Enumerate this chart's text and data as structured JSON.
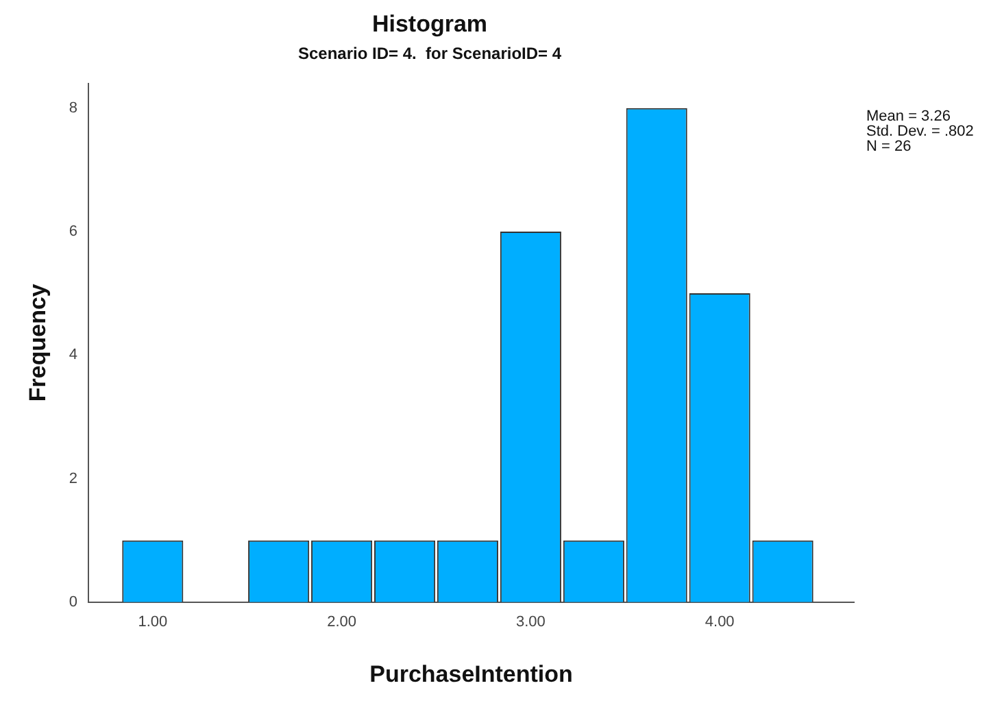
{
  "chart_data": {
    "type": "histogram",
    "title": "Histogram",
    "subtitle": "Scenario ID= 4.  for ScenarioID= 4",
    "xlabel": "PurchaseIntention",
    "ylabel": "Frequency",
    "bins": [
      0.833,
      1.167,
      1.5,
      1.833,
      2.167,
      2.5,
      2.833,
      3.167,
      3.5,
      3.833,
      4.167,
      4.5
    ],
    "values": [
      1,
      0,
      1,
      1,
      1,
      1,
      6,
      1,
      8,
      5,
      1
    ],
    "color": "#00aeff",
    "xlim": [
      0.66,
      4.71
    ],
    "xticks": [
      {
        "value": 1,
        "label": "1.00"
      },
      {
        "value": 2,
        "label": "2.00"
      },
      {
        "value": 3,
        "label": "3.00"
      },
      {
        "value": 4,
        "label": "4.00"
      }
    ],
    "ylim": [
      0,
      8.4
    ],
    "yticks": [
      0,
      2,
      4,
      6,
      8
    ],
    "grid": false,
    "legend": false,
    "annotations": [
      "Mean = 3.26",
      "Std. Dev. = .802",
      "N = 26"
    ]
  }
}
